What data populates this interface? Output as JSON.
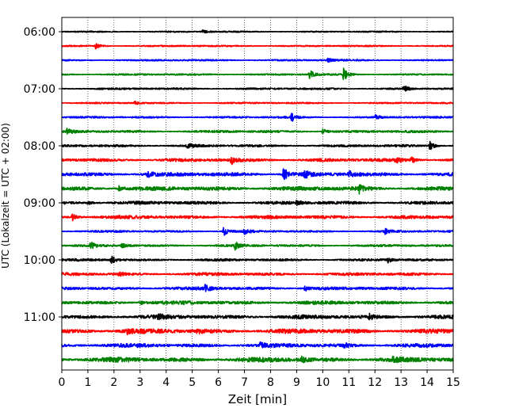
{
  "chart_data": {
    "type": "line",
    "title": "",
    "xlabel": "Zeit  [min]",
    "ylabel": "UTC (Lokalzeit = UTC + 02:00)",
    "xlim": [
      0,
      15
    ],
    "x_ticks": [
      "0",
      "1",
      "2",
      "3",
      "4",
      "5",
      "6",
      "7",
      "8",
      "9",
      "10",
      "11",
      "12",
      "13",
      "14",
      "15"
    ],
    "y_ticks": [
      "06:00",
      "07:00",
      "08:00",
      "09:00",
      "10:00",
      "11:00"
    ],
    "grid": "vertical dotted",
    "legend": "none",
    "description_of_traces": "Helicorder seismogram: one trace per 15-minute interval from 06:00 to 11:45 UTC; trace colors cycle black, red, blue, green.",
    "trace_colors": [
      "#000000",
      "#ff0000",
      "#0000ff",
      "#008000"
    ],
    "series": [
      {
        "start": "06:00",
        "color": "#000000",
        "noise": 0.8,
        "events": [
          [
            5.4,
            2.5
          ]
        ]
      },
      {
        "start": "06:15",
        "color": "#ff0000",
        "noise": 0.9,
        "events": [
          [
            1.3,
            3.5
          ]
        ]
      },
      {
        "start": "06:30",
        "color": "#0000ff",
        "noise": 1.0,
        "events": [
          [
            10.2,
            3.0
          ]
        ]
      },
      {
        "start": "06:45",
        "color": "#008000",
        "noise": 1.0,
        "events": [
          [
            9.5,
            5.5
          ],
          [
            10.8,
            8.0
          ]
        ]
      },
      {
        "start": "07:00",
        "color": "#000000",
        "noise": 1.1,
        "events": [
          [
            13.1,
            4.5
          ]
        ]
      },
      {
        "start": "07:15",
        "color": "#ff0000",
        "noise": 0.9,
        "events": [
          [
            2.8,
            2.0
          ]
        ]
      },
      {
        "start": "07:30",
        "color": "#0000ff",
        "noise": 1.1,
        "events": [
          [
            8.8,
            5.5
          ],
          [
            12.0,
            4.0
          ]
        ]
      },
      {
        "start": "07:45",
        "color": "#008000",
        "noise": 1.4,
        "events": [
          [
            0.2,
            3.0
          ],
          [
            10.0,
            3.5
          ]
        ]
      },
      {
        "start": "08:00",
        "color": "#000000",
        "noise": 1.4,
        "events": [
          [
            4.8,
            3.5
          ],
          [
            14.1,
            5.5
          ]
        ]
      },
      {
        "start": "08:15",
        "color": "#ff0000",
        "noise": 1.9,
        "events": [
          [
            6.5,
            4.5
          ],
          [
            12.8,
            4.0
          ],
          [
            13.4,
            4.0
          ]
        ]
      },
      {
        "start": "08:30",
        "color": "#0000ff",
        "noise": 2.2,
        "events": [
          [
            3.3,
            5.0
          ],
          [
            8.5,
            9.0
          ],
          [
            9.3,
            5.0
          ],
          [
            11.0,
            4.0
          ]
        ]
      },
      {
        "start": "08:45",
        "color": "#008000",
        "noise": 2.4,
        "events": [
          [
            2.2,
            3.5
          ],
          [
            11.4,
            4.5
          ]
        ]
      },
      {
        "start": "09:00",
        "color": "#000000",
        "noise": 1.9,
        "events": [
          [
            1.0,
            2.5
          ],
          [
            9.0,
            2.0
          ]
        ]
      },
      {
        "start": "09:15",
        "color": "#ff0000",
        "noise": 2.0,
        "events": [
          [
            0.4,
            4.5
          ]
        ]
      },
      {
        "start": "09:30",
        "color": "#0000ff",
        "noise": 1.2,
        "events": [
          [
            6.2,
            6.0
          ],
          [
            7.0,
            4.0
          ],
          [
            12.4,
            3.5
          ]
        ]
      },
      {
        "start": "09:45",
        "color": "#008000",
        "noise": 1.3,
        "events": [
          [
            1.1,
            4.0
          ],
          [
            2.3,
            3.0
          ],
          [
            6.6,
            6.0
          ]
        ]
      },
      {
        "start": "10:00",
        "color": "#000000",
        "noise": 1.4,
        "events": [
          [
            1.9,
            5.0
          ],
          [
            12.5,
            3.0
          ]
        ]
      },
      {
        "start": "10:15",
        "color": "#ff0000",
        "noise": 1.7,
        "events": [
          [
            2.2,
            2.5
          ]
        ]
      },
      {
        "start": "10:30",
        "color": "#0000ff",
        "noise": 1.8,
        "events": [
          [
            5.5,
            4.5
          ],
          [
            9.3,
            3.5
          ]
        ]
      },
      {
        "start": "10:45",
        "color": "#008000",
        "noise": 2.1,
        "events": [
          [
            3.0,
            3.0
          ]
        ]
      },
      {
        "start": "11:00",
        "color": "#000000",
        "noise": 2.3,
        "events": [
          [
            3.7,
            3.0
          ],
          [
            11.8,
            3.0
          ]
        ]
      },
      {
        "start": "11:15",
        "color": "#ff0000",
        "noise": 2.6,
        "events": [
          [
            2.5,
            3.0
          ],
          [
            5.2,
            3.0
          ]
        ]
      },
      {
        "start": "11:30",
        "color": "#0000ff",
        "noise": 2.2,
        "events": [
          [
            7.6,
            4.0
          ],
          [
            10.8,
            3.5
          ]
        ]
      },
      {
        "start": "11:45",
        "color": "#008000",
        "noise": 2.7,
        "events": [
          [
            9.2,
            3.0
          ],
          [
            12.7,
            3.0
          ]
        ]
      }
    ]
  }
}
